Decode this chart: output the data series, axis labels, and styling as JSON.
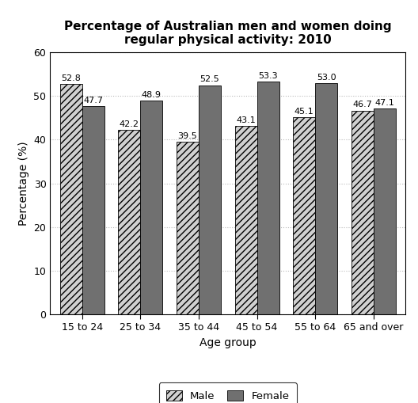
{
  "title": "Percentage of Australian men and women doing\nregular physical activity: 2010",
  "xlabel": "Age group",
  "ylabel": "Percentage (%)",
  "categories": [
    "15 to 24",
    "25 to 34",
    "35 to 44",
    "45 to 54",
    "55 to 64",
    "65 and over"
  ],
  "male_values": [
    52.8,
    42.2,
    39.5,
    43.1,
    45.1,
    46.7
  ],
  "female_values": [
    47.7,
    48.9,
    52.5,
    53.3,
    53.0,
    47.1
  ],
  "ylim": [
    0,
    60
  ],
  "yticks": [
    0,
    10,
    20,
    30,
    40,
    50,
    60
  ],
  "bar_width": 0.38,
  "male_hatch": "////",
  "male_color": "#d0d0d0",
  "female_color": "#707070",
  "grid_color": "#bbbbbb",
  "title_fontsize": 11,
  "axis_label_fontsize": 10,
  "tick_fontsize": 9,
  "value_fontsize": 8,
  "legend_labels": [
    "Male",
    "Female"
  ],
  "background_color": "#ffffff"
}
